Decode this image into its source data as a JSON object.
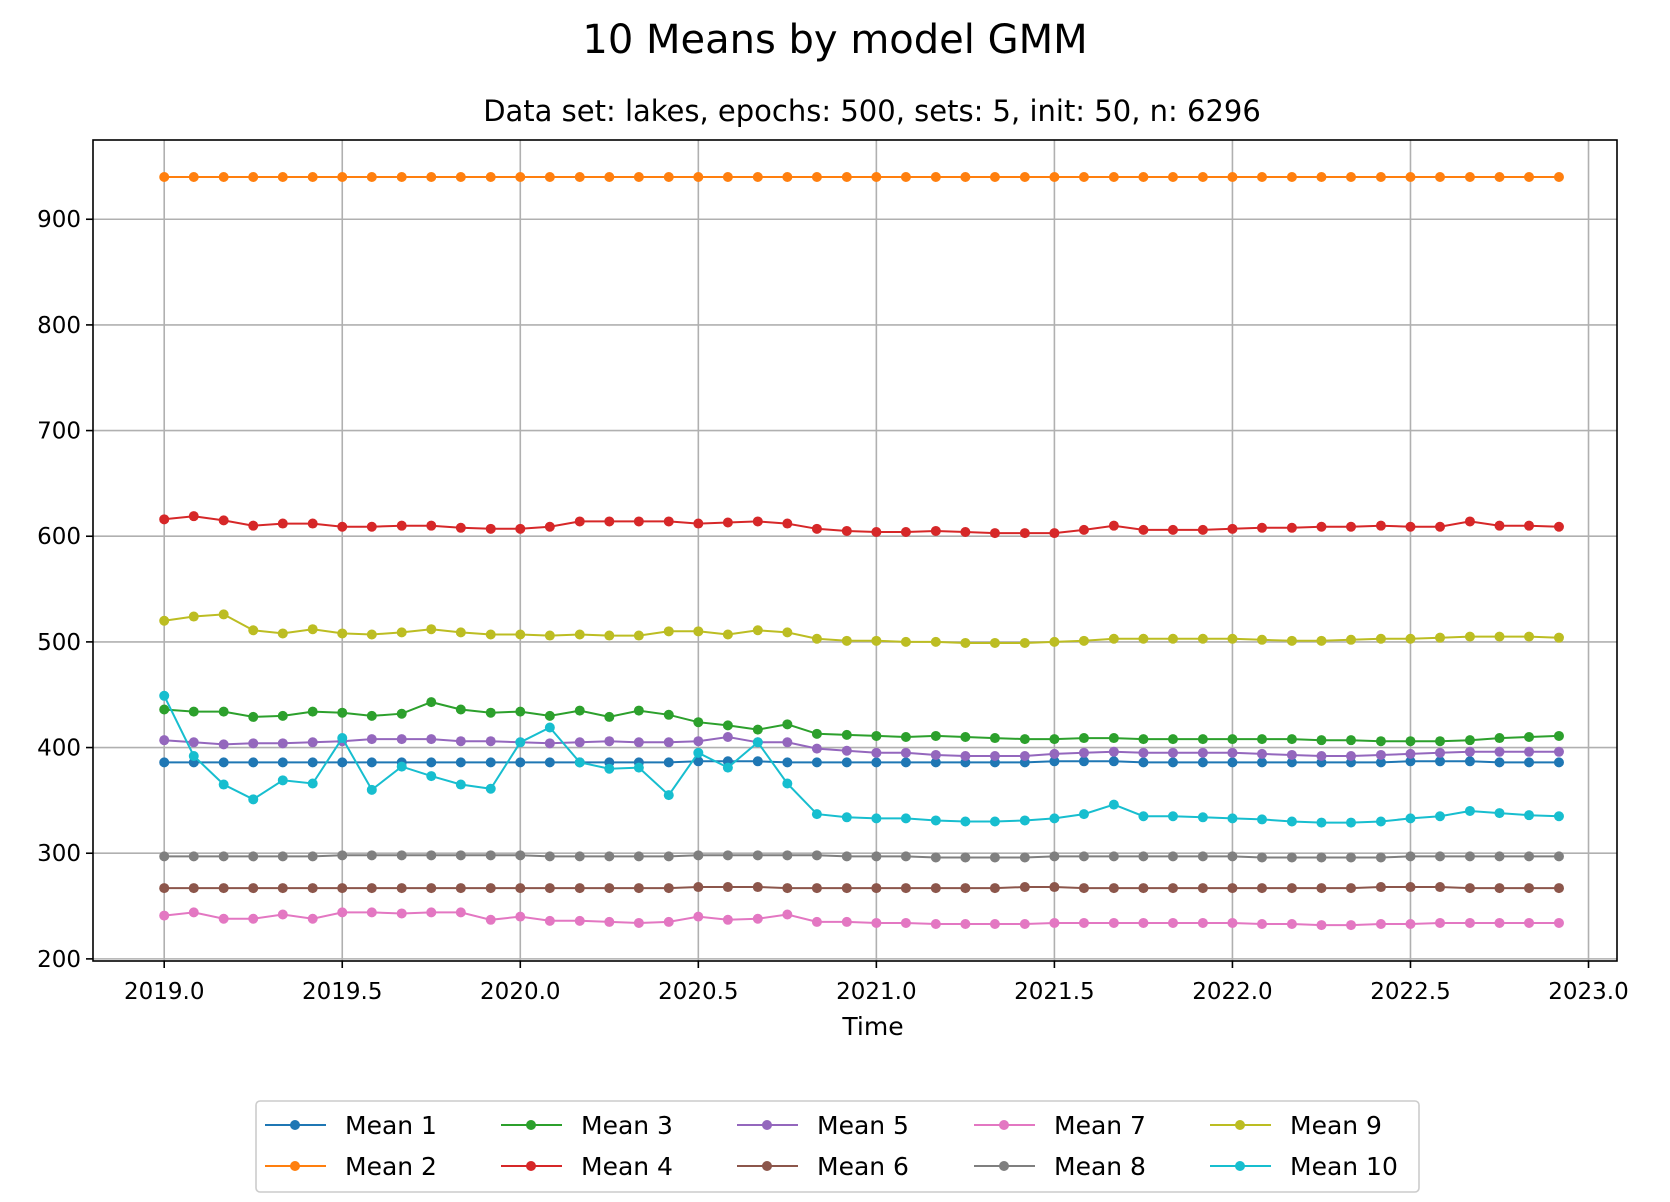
{
  "chart_data": {
    "type": "line",
    "title": "10 Means by model GMM",
    "subtitle": "Data set: lakes, epochs: 500, sets: 5, init: 50, n: 6296",
    "xlabel": "Time",
    "ylabel": "",
    "xlim": [
      2018.8,
      2023.08
    ],
    "ylim": [
      198,
      975
    ],
    "xticks": [
      2019.0,
      2019.5,
      2020.0,
      2020.5,
      2021.0,
      2021.5,
      2022.0,
      2022.5,
      2023.0
    ],
    "xtick_labels": [
      "2019.0",
      "2019.5",
      "2020.0",
      "2020.5",
      "2021.0",
      "2021.5",
      "2022.0",
      "2022.5",
      "2023.0"
    ],
    "yticks": [
      200,
      300,
      400,
      500,
      600,
      700,
      800,
      900
    ],
    "ytick_labels": [
      "200",
      "300",
      "400",
      "500",
      "600",
      "700",
      "800",
      "900"
    ],
    "grid": true,
    "legend_position": "bottom-center",
    "x": [
      2019.0,
      2019.083,
      2019.167,
      2019.25,
      2019.333,
      2019.417,
      2019.5,
      2019.583,
      2019.667,
      2019.75,
      2019.833,
      2019.917,
      2020.0,
      2020.083,
      2020.167,
      2020.25,
      2020.333,
      2020.417,
      2020.5,
      2020.583,
      2020.667,
      2020.75,
      2020.833,
      2020.917,
      2021.0,
      2021.083,
      2021.167,
      2021.25,
      2021.333,
      2021.417,
      2021.5,
      2021.583,
      2021.667,
      2021.75,
      2021.833,
      2021.917,
      2022.0,
      2022.083,
      2022.167,
      2022.25,
      2022.333,
      2022.417,
      2022.5,
      2022.583,
      2022.667,
      2022.75,
      2022.833,
      2022.917
    ],
    "series": [
      {
        "name": "Mean 1",
        "color": "#1f77b4",
        "values": [
          386,
          386,
          386,
          386,
          386,
          386,
          386,
          386,
          386,
          386,
          386,
          386,
          386,
          386,
          386,
          386,
          386,
          386,
          387,
          387,
          387,
          386,
          386,
          386,
          386,
          386,
          386,
          386,
          386,
          386,
          387,
          387,
          387,
          386,
          386,
          386,
          386,
          386,
          386,
          386,
          386,
          386,
          387,
          387,
          387,
          386,
          386,
          386
        ]
      },
      {
        "name": "Mean 2",
        "color": "#ff7f0e",
        "values": [
          940,
          940,
          940,
          940,
          940,
          940,
          940,
          940,
          940,
          940,
          940,
          940,
          940,
          940,
          940,
          940,
          940,
          940,
          940,
          940,
          940,
          940,
          940,
          940,
          940,
          940,
          940,
          940,
          940,
          940,
          940,
          940,
          940,
          940,
          940,
          940,
          940,
          940,
          940,
          940,
          940,
          940,
          940,
          940,
          940,
          940,
          940,
          940
        ]
      },
      {
        "name": "Mean 3",
        "color": "#2ca02c",
        "values": [
          436,
          434,
          434,
          429,
          430,
          434,
          433,
          430,
          432,
          443,
          436,
          433,
          434,
          430,
          435,
          429,
          435,
          431,
          424,
          421,
          417,
          422,
          413,
          412,
          411,
          410,
          411,
          410,
          409,
          408,
          408,
          409,
          409,
          408,
          408,
          408,
          408,
          408,
          408,
          407,
          407,
          406,
          406,
          406,
          407,
          409,
          410,
          411
        ]
      },
      {
        "name": "Mean 4",
        "color": "#d62728",
        "values": [
          616,
          619,
          615,
          610,
          612,
          612,
          609,
          609,
          610,
          610,
          608,
          607,
          607,
          609,
          614,
          614,
          614,
          614,
          612,
          613,
          614,
          612,
          607,
          605,
          604,
          604,
          605,
          604,
          603,
          603,
          603,
          606,
          610,
          606,
          606,
          606,
          607,
          608,
          608,
          609,
          609,
          610,
          609,
          609,
          614,
          610,
          610,
          609
        ]
      },
      {
        "name": "Mean 5",
        "color": "#9467bd",
        "values": [
          407,
          405,
          403,
          404,
          404,
          405,
          406,
          408,
          408,
          408,
          406,
          406,
          405,
          404,
          405,
          406,
          405,
          405,
          406,
          410,
          405,
          405,
          399,
          397,
          395,
          395,
          393,
          392,
          392,
          392,
          394,
          395,
          396,
          395,
          395,
          395,
          395,
          394,
          393,
          392,
          392,
          393,
          394,
          395,
          396,
          396,
          396,
          396
        ]
      },
      {
        "name": "Mean 6",
        "color": "#8c564b",
        "values": [
          267,
          267,
          267,
          267,
          267,
          267,
          267,
          267,
          267,
          267,
          267,
          267,
          267,
          267,
          267,
          267,
          267,
          267,
          268,
          268,
          268,
          267,
          267,
          267,
          267,
          267,
          267,
          267,
          267,
          268,
          268,
          267,
          267,
          267,
          267,
          267,
          267,
          267,
          267,
          267,
          267,
          268,
          268,
          268,
          267,
          267,
          267,
          267
        ]
      },
      {
        "name": "Mean 7",
        "color": "#e377c2",
        "values": [
          241,
          244,
          238,
          238,
          242,
          238,
          244,
          244,
          243,
          244,
          244,
          237,
          240,
          236,
          236,
          235,
          234,
          235,
          240,
          237,
          238,
          242,
          235,
          235,
          234,
          234,
          233,
          233,
          233,
          233,
          234,
          234,
          234,
          234,
          234,
          234,
          234,
          233,
          233,
          232,
          232,
          233,
          233,
          234,
          234,
          234,
          234,
          234
        ]
      },
      {
        "name": "Mean 8",
        "color": "#7f7f7f",
        "values": [
          297,
          297,
          297,
          297,
          297,
          297,
          298,
          298,
          298,
          298,
          298,
          298,
          298,
          297,
          297,
          297,
          297,
          297,
          298,
          298,
          298,
          298,
          298,
          297,
          297,
          297,
          296,
          296,
          296,
          296,
          297,
          297,
          297,
          297,
          297,
          297,
          297,
          296,
          296,
          296,
          296,
          296,
          297,
          297,
          297,
          297,
          297,
          297
        ]
      },
      {
        "name": "Mean 9",
        "color": "#bcbd22",
        "values": [
          520,
          524,
          526,
          511,
          508,
          512,
          508,
          507,
          509,
          512,
          509,
          507,
          507,
          506,
          507,
          506,
          506,
          510,
          510,
          507,
          511,
          509,
          503,
          501,
          501,
          500,
          500,
          499,
          499,
          499,
          500,
          501,
          503,
          503,
          503,
          503,
          503,
          502,
          501,
          501,
          502,
          503,
          503,
          504,
          505,
          505,
          505,
          504
        ]
      },
      {
        "name": "Mean 10",
        "color": "#17becf",
        "values": [
          449,
          392,
          365,
          351,
          369,
          366,
          409,
          360,
          382,
          373,
          365,
          361,
          405,
          419,
          386,
          380,
          381,
          355,
          395,
          381,
          405,
          366,
          337,
          334,
          333,
          333,
          331,
          330,
          330,
          331,
          333,
          337,
          346,
          335,
          335,
          334,
          333,
          332,
          330,
          329,
          329,
          330,
          333,
          335,
          340,
          338,
          336,
          335
        ]
      }
    ]
  }
}
